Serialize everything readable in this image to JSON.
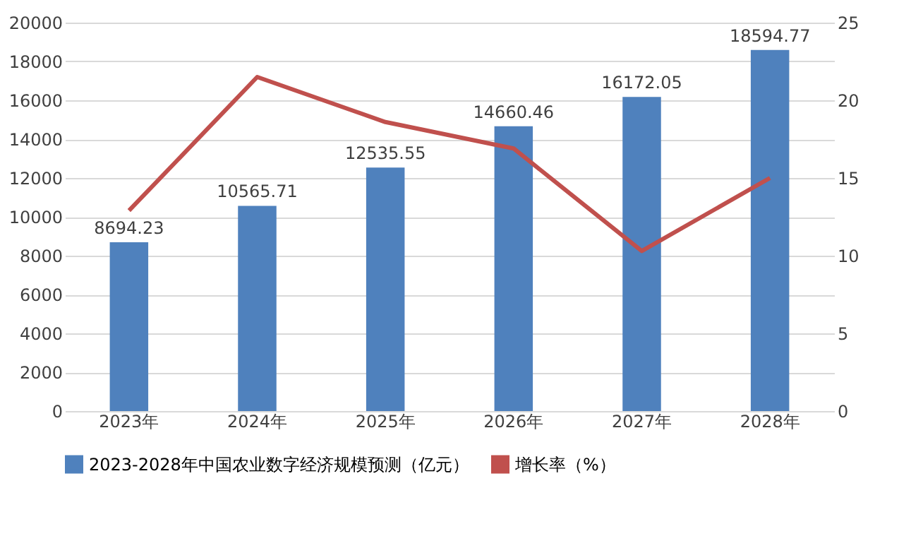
{
  "chart_data": {
    "type": "bar",
    "categories": [
      "2023年",
      "2024年",
      "2025年",
      "2026年",
      "2027年",
      "2028年"
    ],
    "series": [
      {
        "name": "2023-2028年中国农业数字经济规模预测（亿元）",
        "color": "#4f81bd",
        "values": [
          8694.23,
          10565.71,
          12535.55,
          14660.46,
          16172.05,
          18594.77
        ],
        "data_labels": true
      },
      {
        "name": "增长率（%）",
        "color": "#c0504d",
        "type": "line",
        "axis": "y2",
        "values": [
          12.9,
          21.5,
          18.6,
          16.9,
          10.3,
          15.0
        ]
      }
    ],
    "ylim": [
      0,
      20000
    ],
    "yticks": [
      0,
      2000,
      4000,
      6000,
      8000,
      10000,
      12000,
      14000,
      16000,
      18000,
      20000
    ],
    "y2lim": [
      0,
      25
    ],
    "y2ticks": [
      0,
      5,
      10,
      15,
      20,
      25
    ],
    "grid": "y",
    "legend": "bottom",
    "marker": "none",
    "line_style": "solid"
  }
}
